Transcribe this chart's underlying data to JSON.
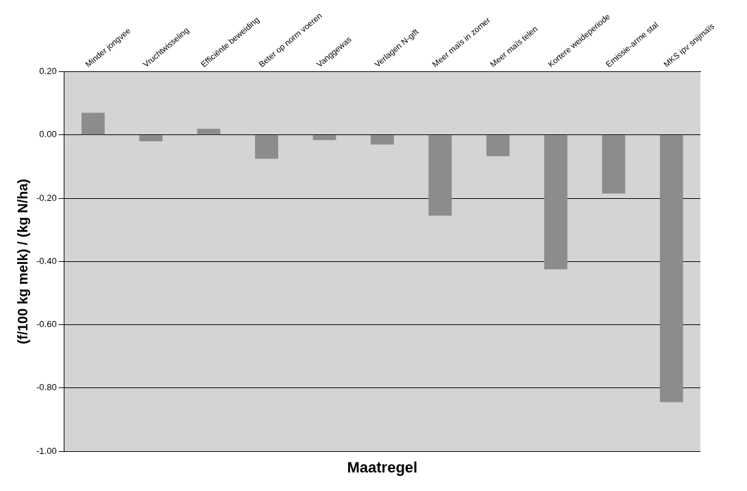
{
  "chart_data": {
    "type": "bar",
    "xlabel": "Maatregel",
    "ylabel": "(f/100 kg melk) / (kg N/ha)",
    "categories": [
      "Minder jongvee",
      "Vruchtwisseling",
      "Efficiënte beweiding",
      "Beter op norm voeren",
      "Vanggewas",
      "Verlagen N-gift",
      "Meer maïs in zomer",
      "Meer maïs telen",
      "Kortere weideperiode",
      "Emissie-arme stal",
      "MKS ipv snijmaïs"
    ],
    "values": [
      0.07,
      -0.02,
      0.02,
      -0.075,
      -0.016,
      -0.03,
      -0.255,
      -0.067,
      -0.425,
      -0.185,
      -0.845
    ],
    "color": "#8c8c8c",
    "ylim": [
      -1,
      0.2
    ],
    "yticks": [
      {
        "value": 0.2,
        "label": "0.20"
      },
      {
        "value": 0,
        "label": "0.00"
      },
      {
        "value": -0.2,
        "label": "-0.20"
      },
      {
        "value": -0.4,
        "label": "-0.40"
      },
      {
        "value": -0.6,
        "label": "-0.60"
      },
      {
        "value": -0.8,
        "label": "-0.80"
      },
      {
        "value": -1,
        "label": "-1.00"
      }
    ],
    "grid": "y",
    "legend": false
  }
}
